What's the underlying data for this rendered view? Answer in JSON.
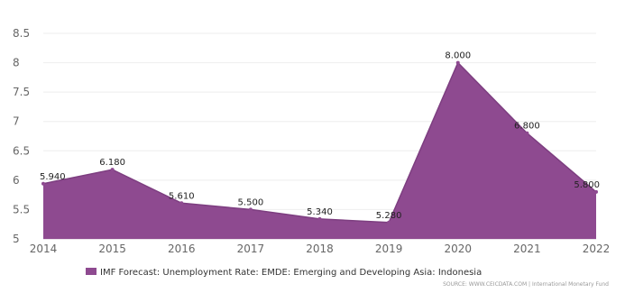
{
  "chart_data": {
    "type": "area",
    "categories": [
      "2014",
      "2015",
      "2016",
      "2017",
      "2018",
      "2019",
      "2020",
      "2021",
      "2022"
    ],
    "series": [
      {
        "name": "IMF Forecast: Unemployment Rate: EMDE: Emerging and Developing Asia: Indonesia",
        "values": [
          5.94,
          6.18,
          5.61,
          5.5,
          5.34,
          5.28,
          8.0,
          6.8,
          5.8
        ],
        "labels": [
          "5.940",
          "6.180",
          "5.610",
          "5.500",
          "5.340",
          "5.280",
          "8.000",
          "6.800",
          "5.800"
        ],
        "color": "#8e4a90"
      }
    ],
    "yticks": [
      "5",
      "5.5",
      "6",
      "6.5",
      "7",
      "7.5",
      "8",
      "8.5"
    ],
    "ylim": [
      5,
      8.5
    ],
    "grid": "horizontal",
    "legend_position": "bottom",
    "source": "SOURCE: WWW.CEICDATA.COM | International Monetary Fund"
  }
}
